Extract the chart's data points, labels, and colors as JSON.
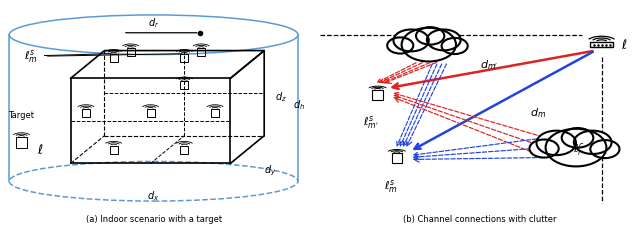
{
  "bg_color": "#ffffff",
  "cyl_color": "#5b9bd5",
  "red_color": "#dd2222",
  "blue_color": "#2244dd",
  "black_color": "#000000",
  "caption_left": "(a) Indoor scenario with a target",
  "caption_right": "(b) Channel connections with clutter"
}
